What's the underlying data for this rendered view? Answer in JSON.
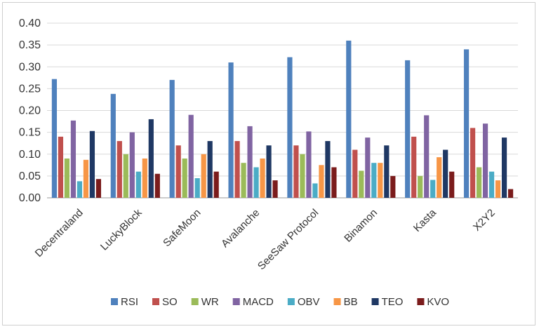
{
  "chart_data": {
    "type": "bar",
    "categories": [
      "Decentraland",
      "LuckyBlock",
      "SafeMoon",
      "Avalanche",
      "SeeSaw Protocol",
      "Binamon",
      "Kasta",
      "X2Y2"
    ],
    "series": [
      {
        "name": "RSI",
        "color": "#4f81bd",
        "values": [
          0.272,
          0.238,
          0.27,
          0.31,
          0.322,
          0.36,
          0.315,
          0.34
        ]
      },
      {
        "name": "SO",
        "color": "#c0504d",
        "values": [
          0.14,
          0.13,
          0.12,
          0.13,
          0.12,
          0.11,
          0.14,
          0.16
        ]
      },
      {
        "name": "WR",
        "color": "#9bbb59",
        "values": [
          0.09,
          0.1,
          0.09,
          0.08,
          0.1,
          0.062,
          0.05,
          0.07
        ]
      },
      {
        "name": "MACD",
        "color": "#8064a2",
        "values": [
          0.177,
          0.15,
          0.19,
          0.164,
          0.152,
          0.138,
          0.189,
          0.17
        ]
      },
      {
        "name": "OBV",
        "color": "#4bacc6",
        "values": [
          0.038,
          0.06,
          0.045,
          0.07,
          0.033,
          0.08,
          0.041,
          0.06
        ]
      },
      {
        "name": "BB",
        "color": "#f79646",
        "values": [
          0.087,
          0.09,
          0.1,
          0.09,
          0.075,
          0.08,
          0.093,
          0.04
        ]
      },
      {
        "name": "TEO",
        "color": "#1f3864",
        "values": [
          0.153,
          0.18,
          0.13,
          0.12,
          0.13,
          0.12,
          0.11,
          0.138
        ]
      },
      {
        "name": "KVO",
        "color": "#7b1c1c",
        "values": [
          0.043,
          0.055,
          0.06,
          0.04,
          0.07,
          0.05,
          0.06,
          0.02
        ]
      }
    ],
    "yticks": [
      "0.00",
      "0.05",
      "0.10",
      "0.15",
      "0.20",
      "0.25",
      "0.30",
      "0.35",
      "0.40"
    ],
    "ylim": [
      0,
      0.4
    ],
    "grid": true,
    "legend": "bottom"
  }
}
